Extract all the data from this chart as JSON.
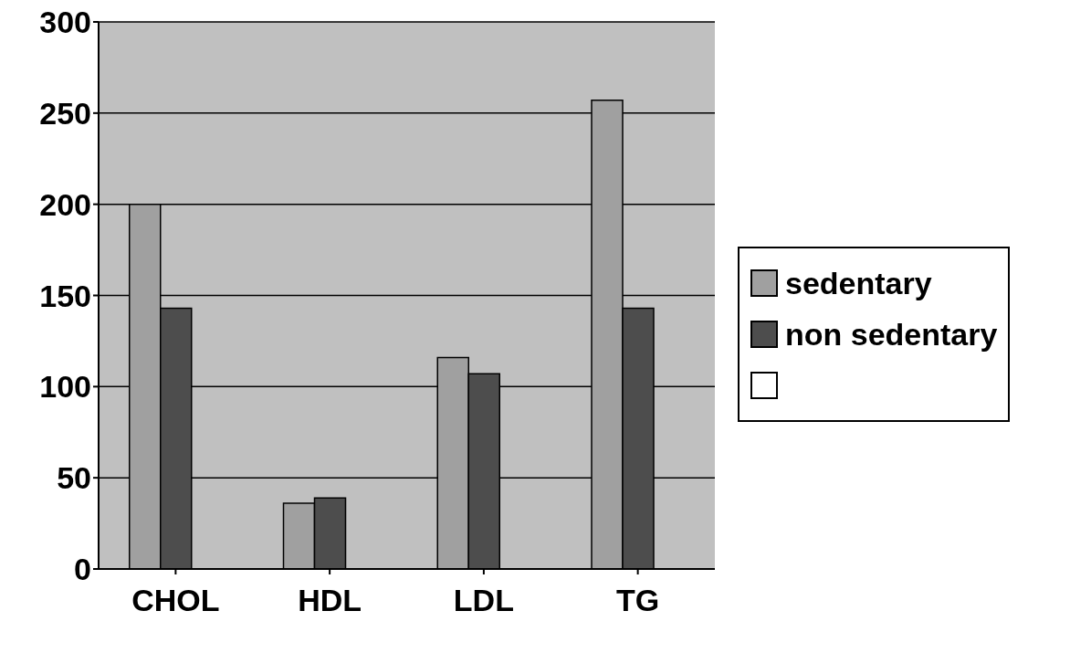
{
  "chart_data": {
    "type": "bar",
    "categories": [
      "CHOL",
      "HDL",
      "LDL",
      "TG"
    ],
    "series": [
      {
        "name": "sedentary",
        "color": "#a0a0a0",
        "values": [
          200,
          36,
          116,
          257
        ]
      },
      {
        "name": "non sedentary",
        "color": "#4d4d4d",
        "values": [
          143,
          39,
          107,
          143
        ]
      },
      {
        "color": "#ffffff",
        "values": [
          null,
          null,
          null,
          null
        ]
      }
    ],
    "ylim": [
      0,
      300
    ],
    "yticks": [
      0,
      50,
      100,
      150,
      200,
      250,
      300
    ],
    "grid": "y",
    "legend": "right"
  }
}
